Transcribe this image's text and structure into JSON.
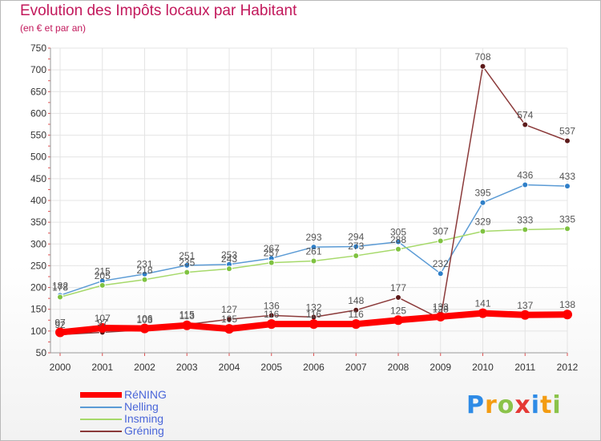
{
  "title": "Evolution des Impôts locaux par Habitant",
  "subtitle": "(en € et par an)",
  "logo": {
    "letters": [
      "P",
      "r",
      "o",
      "x",
      "i",
      "t",
      "i"
    ],
    "colors": [
      "#2e8be6",
      "#f39c12",
      "#8bc34a",
      "#e53935",
      "#2e8be6",
      "#f39c12",
      "#8bc34a"
    ]
  },
  "chart_data": {
    "type": "line",
    "title": "Evolution des Impôts locaux par Habitant",
    "subtitle": "(en € et par an)",
    "x": [
      "2000",
      "2001",
      "2002",
      "2003",
      "2004",
      "2005",
      "2006",
      "2007",
      "2008",
      "2009",
      "2010",
      "2011",
      "2012"
    ],
    "ylim": [
      50,
      750
    ],
    "yticks": [
      50,
      100,
      150,
      200,
      250,
      300,
      350,
      400,
      450,
      500,
      550,
      600,
      650,
      700,
      750
    ],
    "series": [
      {
        "name": "Nelling",
        "color": "#5b9bd5",
        "marker": "#2f7fc8",
        "values": [
          182,
          215,
          231,
          251,
          253,
          267,
          293,
          294,
          305,
          232,
          395,
          436,
          433
        ]
      },
      {
        "name": "Insming",
        "color": "#a6d96a",
        "marker": "#7fc241",
        "values": [
          178,
          205,
          218,
          235,
          243,
          257,
          261,
          273,
          288,
          307,
          329,
          333,
          335
        ]
      },
      {
        "name": "Gréning",
        "color": "#8b3a3a",
        "marker": "#5c1a1a",
        "values": [
          92,
          97,
          103,
          115,
          127,
          136,
          132,
          148,
          177,
          128,
          708,
          574,
          537
        ]
      },
      {
        "name": "RéNING",
        "color": "#ff0000",
        "marker": "#ff0000",
        "values": [
          97,
          107,
          106,
          113,
          105,
          116,
          116,
          116,
          125,
          133,
          141,
          137,
          138
        ]
      }
    ],
    "legend": [
      "RéNING",
      "Nelling",
      "Insming",
      "Gréning"
    ],
    "legend_position": "bottom-left"
  }
}
